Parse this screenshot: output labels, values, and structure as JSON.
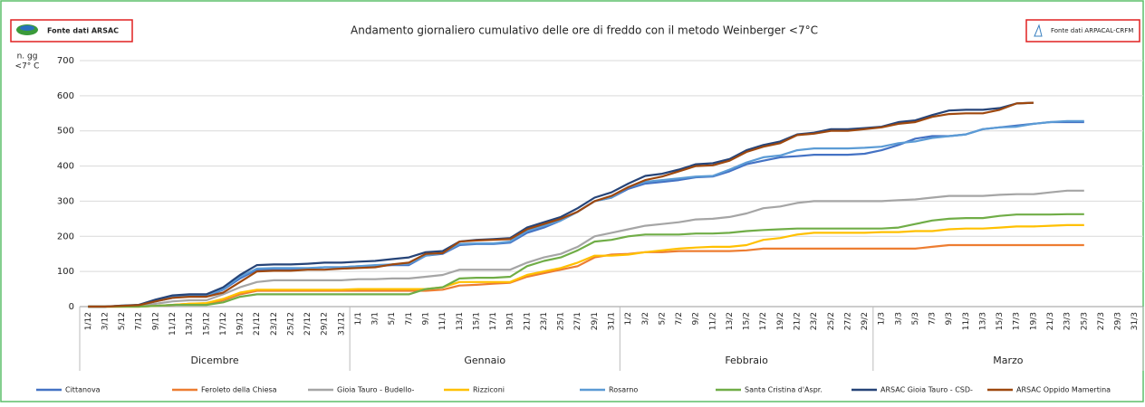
{
  "chart_data": {
    "type": "line",
    "title": "Andamento giornaliero cumulativo delle ore di freddo con il metodo Weinberger <7°C",
    "source_left": "Fonte dati ARSAC",
    "source_right": "Fonte dati ARPACAL-CRFM",
    "y_label": [
      "n. gg",
      "<7° C"
    ],
    "groups": [
      "Dicembre",
      "Gennaio",
      "Febbraio",
      "Marzo"
    ],
    "categories": [
      "1/12",
      "3/12",
      "5/12",
      "7/12",
      "9/12",
      "11/12",
      "13/12",
      "15/12",
      "17/12",
      "19/12",
      "21/12",
      "23/12",
      "25/12",
      "27/12",
      "29/12",
      "31/12",
      "1/1",
      "3/1",
      "5/1",
      "7/1",
      "9/1",
      "11/1",
      "13/1",
      "15/1",
      "17/1",
      "19/1",
      "21/1",
      "23/1",
      "25/1",
      "27/1",
      "29/1",
      "31/1",
      "1/2",
      "3/2",
      "5/2",
      "7/2",
      "9/2",
      "11/2",
      "13/2",
      "15/2",
      "17/2",
      "19/2",
      "21/2",
      "23/2",
      "25/2",
      "27/2",
      "29/2",
      "1/3",
      "3/3",
      "5/3",
      "7/3",
      "9/3",
      "11/3",
      "13/3",
      "15/3",
      "17/3",
      "19/3",
      "21/3",
      "23/3",
      "25/3",
      "27/3",
      "29/3",
      "31/3"
    ],
    "ylim": [
      0,
      700
    ],
    "yticks": [
      0,
      100,
      200,
      300,
      400,
      500,
      600,
      700
    ],
    "grid": true,
    "series": [
      {
        "name": "Cittanova",
        "color": "#4472c4",
        "values": [
          0,
          0,
          2,
          4,
          15,
          25,
          30,
          30,
          48,
          80,
          105,
          105,
          105,
          108,
          112,
          112,
          115,
          115,
          118,
          118,
          145,
          150,
          175,
          178,
          178,
          182,
          210,
          225,
          245,
          270,
          300,
          310,
          335,
          350,
          355,
          360,
          368,
          370,
          385,
          405,
          415,
          425,
          428,
          432,
          432,
          432,
          435,
          445,
          460,
          478,
          485,
          485,
          490,
          505,
          510,
          515,
          520,
          525,
          525,
          525,
          null,
          null,
          null
        ]
      },
      {
        "name": "Feroleto della Chiesa",
        "color": "#ed7d31",
        "values": [
          0,
          0,
          0,
          0,
          2,
          5,
          8,
          8,
          18,
          35,
          45,
          45,
          45,
          45,
          45,
          45,
          45,
          45,
          45,
          45,
          45,
          48,
          60,
          62,
          65,
          68,
          85,
          95,
          105,
          115,
          140,
          148,
          150,
          155,
          155,
          158,
          158,
          158,
          158,
          160,
          165,
          165,
          165,
          165,
          165,
          165,
          165,
          165,
          165,
          165,
          170,
          175,
          175,
          175,
          175,
          175,
          175,
          175,
          175,
          175,
          null,
          null,
          null
        ]
      },
      {
        "name": "Gioia Tauro - Budello-",
        "color": "#a5a5a5",
        "values": [
          0,
          0,
          1,
          2,
          8,
          15,
          18,
          18,
          35,
          55,
          70,
          75,
          75,
          75,
          75,
          75,
          78,
          78,
          80,
          80,
          85,
          90,
          105,
          105,
          105,
          105,
          125,
          140,
          150,
          170,
          200,
          210,
          220,
          230,
          235,
          240,
          248,
          250,
          255,
          265,
          280,
          285,
          295,
          300,
          300,
          300,
          300,
          300,
          303,
          305,
          310,
          315,
          315,
          315,
          318,
          320,
          320,
          325,
          330,
          330,
          null,
          null,
          null
        ]
      },
      {
        "name": "Rizziconi",
        "color": "#ffc000",
        "values": [
          0,
          0,
          0,
          0,
          2,
          5,
          8,
          10,
          22,
          40,
          48,
          48,
          48,
          48,
          48,
          48,
          50,
          50,
          50,
          50,
          50,
          55,
          70,
          70,
          70,
          70,
          90,
          100,
          110,
          125,
          145,
          145,
          148,
          155,
          160,
          165,
          168,
          170,
          170,
          175,
          190,
          195,
          205,
          210,
          210,
          210,
          210,
          212,
          212,
          215,
          215,
          220,
          222,
          222,
          225,
          228,
          228,
          230,
          232,
          232,
          null,
          null,
          null
        ]
      },
      {
        "name": "Rosarno",
        "color": "#5b9bd5",
        "values": [
          0,
          0,
          2,
          5,
          15,
          28,
          32,
          32,
          50,
          85,
          108,
          110,
          110,
          110,
          112,
          112,
          115,
          118,
          120,
          122,
          145,
          152,
          178,
          180,
          180,
          185,
          215,
          230,
          245,
          270,
          300,
          310,
          340,
          355,
          360,
          365,
          370,
          372,
          390,
          410,
          425,
          430,
          445,
          450,
          450,
          450,
          452,
          455,
          465,
          470,
          480,
          485,
          490,
          505,
          510,
          512,
          520,
          525,
          528,
          528,
          null,
          null,
          null
        ]
      },
      {
        "name": "Santa Cristina d'Aspr.",
        "color": "#70ad47",
        "values": [
          0,
          0,
          0,
          0,
          2,
          5,
          5,
          5,
          12,
          28,
          35,
          35,
          35,
          35,
          35,
          35,
          35,
          35,
          35,
          35,
          50,
          55,
          80,
          82,
          82,
          85,
          115,
          130,
          140,
          160,
          185,
          190,
          200,
          205,
          205,
          205,
          208,
          208,
          210,
          215,
          218,
          220,
          222,
          222,
          222,
          222,
          222,
          222,
          225,
          235,
          245,
          250,
          252,
          252,
          258,
          262,
          262,
          262,
          263,
          263,
          null,
          null,
          null
        ]
      },
      {
        "name": "ARSAC Gioia Tauro - CSD-",
        "color": "#264478",
        "values": [
          0,
          0,
          3,
          5,
          20,
          32,
          35,
          35,
          55,
          90,
          118,
          120,
          120,
          122,
          125,
          125,
          128,
          130,
          135,
          140,
          155,
          158,
          185,
          190,
          192,
          195,
          225,
          240,
          255,
          280,
          310,
          325,
          350,
          372,
          378,
          390,
          405,
          408,
          420,
          445,
          460,
          470,
          490,
          495,
          505,
          505,
          508,
          512,
          525,
          530,
          545,
          558,
          560,
          560,
          565,
          578,
          580,
          null,
          null,
          null,
          null,
          null,
          null
        ]
      },
      {
        "name": "ARSAC Oppido Mamertina",
        "color": "#9e480e",
        "values": [
          0,
          0,
          2,
          4,
          15,
          25,
          28,
          28,
          40,
          70,
          100,
          102,
          102,
          105,
          105,
          108,
          110,
          112,
          120,
          125,
          150,
          152,
          185,
          188,
          190,
          192,
          220,
          235,
          250,
          270,
          300,
          315,
          340,
          360,
          370,
          385,
          400,
          402,
          415,
          440,
          455,
          465,
          488,
          492,
          500,
          500,
          505,
          510,
          520,
          525,
          540,
          548,
          550,
          550,
          560,
          578,
          580,
          null,
          null,
          null,
          null,
          null,
          null
        ]
      }
    ]
  }
}
